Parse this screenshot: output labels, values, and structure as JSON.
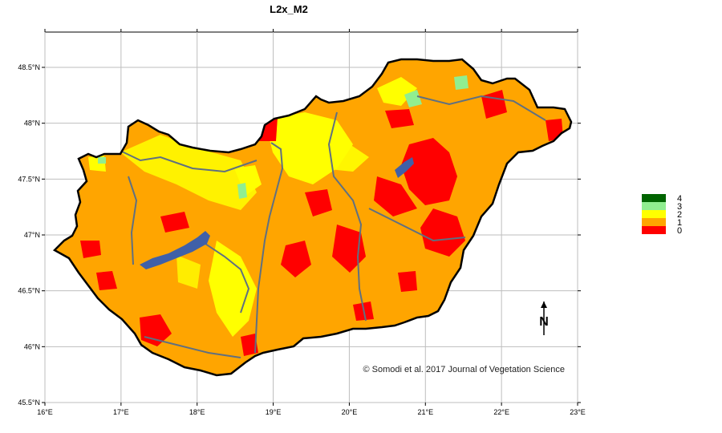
{
  "title": "L2x_M2",
  "credit": "© Somodi et al. 2017 Journal of Vegetation Science",
  "north_label": "N",
  "x_ticks": [
    {
      "value": 16,
      "label": "16°E"
    },
    {
      "value": 17,
      "label": "17°E"
    },
    {
      "value": 18,
      "label": "18°E"
    },
    {
      "value": 19,
      "label": "19°E"
    },
    {
      "value": 20,
      "label": "20°E"
    },
    {
      "value": 21,
      "label": "21°E"
    },
    {
      "value": 22,
      "label": "22°E"
    },
    {
      "value": 23,
      "label": "23°E"
    }
  ],
  "y_ticks": [
    {
      "value": 45.5,
      "label": "45.5°N"
    },
    {
      "value": 46,
      "label": "46°N"
    },
    {
      "value": 46.5,
      "label": "46.5°N"
    },
    {
      "value": 47,
      "label": "47°N"
    },
    {
      "value": 47.5,
      "label": "47.5°N"
    },
    {
      "value": 48,
      "label": "48°N"
    },
    {
      "value": 48.5,
      "label": "48.5°N"
    }
  ],
  "legend": [
    {
      "label": "4",
      "color": "#006400"
    },
    {
      "label": "3",
      "color": "#90EE90"
    },
    {
      "label": "2",
      "color": "#FFFF00"
    },
    {
      "label": "1",
      "color": "#FFA500"
    },
    {
      "label": "0",
      "color": "#FF0000"
    }
  ],
  "colors": {
    "base": "#FFA500",
    "class0": "#FF0000",
    "class2": "#FFFF00",
    "class3": "#90EE90",
    "water": "#4060A8",
    "river": "#607080",
    "grid": "#BEBEBE",
    "border": "#000000"
  }
}
